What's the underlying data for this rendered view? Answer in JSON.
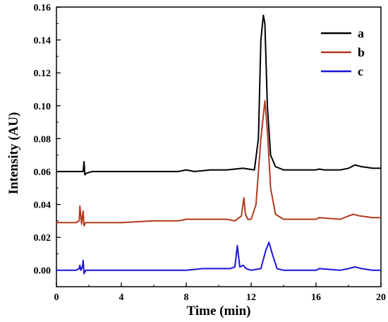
{
  "chart_data": {
    "type": "line",
    "title": "",
    "xlabel": "Time (min)",
    "ylabel": "Intensity (AU)",
    "xlim": [
      0,
      20
    ],
    "ylim": [
      -0.01,
      0.16
    ],
    "x_ticks": [
      0,
      4,
      8,
      12,
      16,
      20
    ],
    "x_tick_labels": [
      "0",
      "4",
      "8",
      "12",
      "16",
      "20"
    ],
    "y_ticks": [
      0.0,
      0.02,
      0.04,
      0.06,
      0.08,
      0.1,
      0.12,
      0.14,
      0.16
    ],
    "y_tick_labels": [
      "0.00",
      "0.02",
      "0.04",
      "0.06",
      "0.08",
      "0.10",
      "0.12",
      "0.14",
      "0.16"
    ],
    "grid": false,
    "legend_position": "top-right",
    "series": [
      {
        "name": "a",
        "color": "#000000",
        "x": [
          0,
          1.0,
          1.5,
          1.65,
          1.7,
          1.75,
          1.85,
          2.2,
          4,
          6,
          7.5,
          8.0,
          8.5,
          9.5,
          10.5,
          11.5,
          12.2,
          12.45,
          12.6,
          12.75,
          12.85,
          13.0,
          13.2,
          13.5,
          14,
          15,
          16,
          16.2,
          16.5,
          17.5,
          18.0,
          18.4,
          18.8,
          19.5,
          20
        ],
        "y": [
          0.06,
          0.06,
          0.06,
          0.06,
          0.066,
          0.058,
          0.059,
          0.06,
          0.06,
          0.06,
          0.06,
          0.061,
          0.06,
          0.061,
          0.061,
          0.062,
          0.061,
          0.08,
          0.14,
          0.155,
          0.15,
          0.1,
          0.07,
          0.063,
          0.061,
          0.061,
          0.061,
          0.0615,
          0.061,
          0.061,
          0.062,
          0.064,
          0.063,
          0.062,
          0.062
        ]
      },
      {
        "name": "b",
        "color": "#b03a1e",
        "x": [
          0,
          1.2,
          1.4,
          1.45,
          1.55,
          1.65,
          1.7,
          1.8,
          2.2,
          4,
          6,
          6.5,
          7.5,
          8.0,
          9.5,
          10.5,
          11.0,
          11.4,
          11.55,
          11.65,
          11.8,
          12.0,
          12.3,
          12.6,
          12.85,
          13.0,
          13.2,
          13.5,
          14,
          15,
          16,
          16.2,
          17.5,
          18.0,
          18.3,
          18.7,
          19.5,
          20
        ],
        "y": [
          0.029,
          0.029,
          0.03,
          0.039,
          0.028,
          0.036,
          0.027,
          0.029,
          0.029,
          0.029,
          0.03,
          0.03,
          0.03,
          0.031,
          0.031,
          0.031,
          0.03,
          0.033,
          0.044,
          0.034,
          0.031,
          0.031,
          0.04,
          0.08,
          0.103,
          0.085,
          0.05,
          0.034,
          0.031,
          0.031,
          0.031,
          0.032,
          0.031,
          0.033,
          0.034,
          0.033,
          0.032,
          0.032
        ]
      },
      {
        "name": "c",
        "color": "#1a14d6",
        "x": [
          0,
          1.2,
          1.4,
          1.45,
          1.5,
          1.6,
          1.65,
          1.7,
          1.8,
          2.2,
          4,
          6,
          8,
          9.0,
          10.0,
          10.7,
          11.0,
          11.15,
          11.3,
          11.5,
          11.7,
          12.0,
          12.6,
          12.9,
          13.1,
          13.3,
          13.6,
          14,
          15,
          16,
          16.2,
          17.5,
          18.0,
          18.4,
          18.8,
          19.5,
          20
        ],
        "y": [
          0.0,
          0.0,
          0.001,
          0.003,
          0.0,
          0.002,
          0.006,
          -0.002,
          0.0,
          0.0,
          0.0,
          0.0,
          0.0,
          0.001,
          0.001,
          0.001,
          0.002,
          0.015,
          0.002,
          0.003,
          0.001,
          0.0,
          0.001,
          0.012,
          0.017,
          0.01,
          0.001,
          0.0,
          0.0,
          0.0,
          0.001,
          0.0,
          0.001,
          0.002,
          0.001,
          0.0,
          0.0
        ]
      }
    ]
  }
}
